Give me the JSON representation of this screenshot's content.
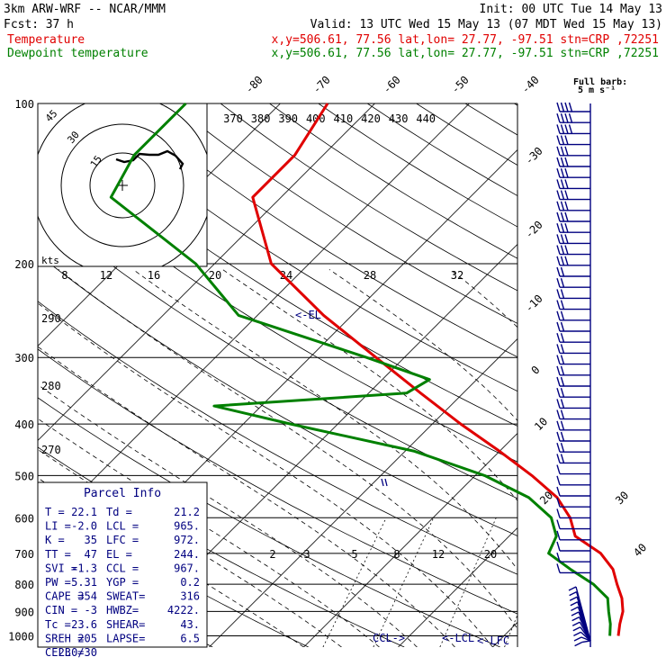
{
  "header": {
    "model": "3km ARW-WRF -- NCAR/MMM",
    "init": "Init: 00 UTC Tue 14 May 13",
    "fcst_label": "Fcst:",
    "fcst_value": "37 h",
    "valid": "Valid: 13 UTC Wed 15 May 13 (07 MDT Wed 15 May 13)",
    "temp_label": "Temperature",
    "temp_loc": "x,y=506.61, 77.56   lat,lon= 27.77, -97.51   stn=CRP ,72251",
    "dew_label": "Dewpoint temperature",
    "dew_loc": "x,y=506.61, 77.56   lat,lon= 27.77, -97.51   stn=CRP ,72251"
  },
  "barb_legend": {
    "line1": "Full barb:",
    "line2": "5 m s⁻¹"
  },
  "hodograph": {
    "rings": [
      "15",
      "30",
      "45"
    ],
    "units": "kts"
  },
  "parcel_info": {
    "title": "Parcel Info",
    "rows": [
      [
        "T  =",
        "22.1",
        "Td =",
        "21.2"
      ],
      [
        "LI =",
        "-2.0",
        "LCL =",
        "965."
      ],
      [
        "K  =",
        "35",
        "LFC =",
        "972."
      ],
      [
        "TT =",
        "47",
        "EL  =",
        "244."
      ],
      [
        "SVI =",
        "-1.3",
        "CCL =",
        "967."
      ],
      [
        "PW =",
        "5.31",
        "YGP =",
        "0.2"
      ],
      [
        "CAPE =",
        "354",
        "SWEAT=",
        "316"
      ],
      [
        "CIN =",
        "-3",
        "HWBZ=",
        "4222."
      ],
      [
        "Tc =",
        "23.6",
        "SHEAR=",
        "43."
      ],
      [
        "SREH =",
        "205",
        "LAPSE=",
        "6.5"
      ],
      [
        "CELL =",
        "230/30",
        "",
        ""
      ]
    ]
  },
  "markers": {
    "el": "<-EL",
    "ccl": "CCL->",
    "lcl": "<-LCL",
    "lfc": "<-LFC"
  },
  "colors": {
    "temperature": "#e00000",
    "dewpoint": "#008000",
    "navy": "#000080"
  },
  "chart_data": {
    "type": "line",
    "pressure_levels": [
      "100",
      "200",
      "300",
      "400",
      "500",
      "600",
      "700",
      "800",
      "900",
      "1000"
    ],
    "isotherm_labels": [
      "-80",
      "-70",
      "-60",
      "-50",
      "-40",
      "-30",
      "-20",
      "-10",
      "0",
      "10",
      "20",
      "30",
      "40"
    ],
    "theta_labels": [
      "370",
      "380",
      "390",
      "400",
      "410",
      "420",
      "430",
      "440"
    ],
    "mixing_ratio_top": [
      "8",
      "12",
      "16",
      "20",
      "24",
      "28",
      "32"
    ],
    "mixing_ratio_bottom": [
      "2",
      "3",
      "5",
      "8",
      "12",
      "20"
    ],
    "dry_adiabat_labels": [
      "290",
      "280",
      "270"
    ],
    "series": [
      {
        "name": "Temperature",
        "color": "#e00000",
        "pressure": [
          1000,
          950,
          900,
          850,
          800,
          750,
          700,
          650,
          600,
          550,
          500,
          450,
          400,
          350,
          300,
          250,
          200,
          150,
          125,
          100
        ],
        "values": [
          22.1,
          21.0,
          20.0,
          18.5,
          16.5,
          14.5,
          11.5,
          7.0,
          4.5,
          1.0,
          -4.0,
          -10.0,
          -17.0,
          -24.5,
          -33.0,
          -43.0,
          -54.0,
          -63.0,
          -63.0,
          -65.0
        ]
      },
      {
        "name": "Dewpoint temperature",
        "color": "#008000",
        "pressure": [
          1000,
          950,
          900,
          850,
          800,
          750,
          700,
          650,
          600,
          550,
          500,
          450,
          400,
          370,
          350,
          330,
          300,
          250,
          200,
          150,
          125,
          100
        ],
        "values": [
          21.2,
          20.0,
          18.5,
          17.0,
          14.0,
          10.0,
          6.0,
          5.0,
          2.5,
          -2.0,
          -9.0,
          -19.0,
          -35.0,
          -45.0,
          -26.0,
          -25.0,
          -34.0,
          -52.0,
          -62.0,
          -78.0,
          -80.0,
          -80.0
        ]
      }
    ]
  }
}
